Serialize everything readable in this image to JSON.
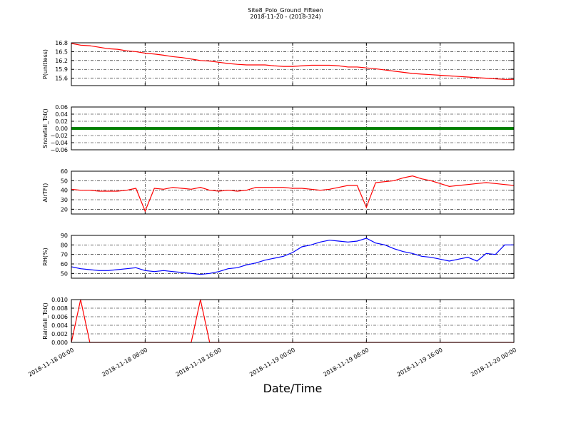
{
  "title": "Site8_Polo_Ground_Fifteen",
  "subtitle": "2018-11-20 - (2018-324)",
  "x_axis": {
    "label": "Date/Time",
    "xlim": [
      "2018-11-18 00:00",
      "2018-11-20 00:00"
    ],
    "xticks": [
      "2018-11-18 00:00",
      "2018-11-18 08:00",
      "2018-11-18 16:00",
      "2018-11-19 00:00",
      "2018-11-19 08:00",
      "2018-11-19 16:00",
      "2018-11-20 00:00"
    ],
    "x": [
      "2018-11-18 00:00",
      "2018-11-18 01:00",
      "2018-11-18 02:00",
      "2018-11-18 03:00",
      "2018-11-18 04:00",
      "2018-11-18 05:00",
      "2018-11-18 06:00",
      "2018-11-18 07:00",
      "2018-11-18 08:00",
      "2018-11-18 09:00",
      "2018-11-18 10:00",
      "2018-11-18 11:00",
      "2018-11-18 12:00",
      "2018-11-18 13:00",
      "2018-11-18 14:00",
      "2018-11-18 15:00",
      "2018-11-18 16:00",
      "2018-11-18 17:00",
      "2018-11-18 18:00",
      "2018-11-18 19:00",
      "2018-11-18 20:00",
      "2018-11-18 21:00",
      "2018-11-18 22:00",
      "2018-11-18 23:00",
      "2018-11-19 00:00",
      "2018-11-19 01:00",
      "2018-11-19 02:00",
      "2018-11-19 03:00",
      "2018-11-19 04:00",
      "2018-11-19 05:00",
      "2018-11-19 06:00",
      "2018-11-19 07:00",
      "2018-11-19 08:00",
      "2018-11-19 09:00",
      "2018-11-19 10:00",
      "2018-11-19 11:00",
      "2018-11-19 12:00",
      "2018-11-19 13:00",
      "2018-11-19 14:00",
      "2018-11-19 15:00",
      "2018-11-19 16:00",
      "2018-11-19 17:00",
      "2018-11-19 18:00",
      "2018-11-19 19:00",
      "2018-11-19 20:00",
      "2018-11-19 21:00",
      "2018-11-19 22:00",
      "2018-11-19 23:00",
      "2018-11-20 00:00"
    ]
  },
  "chart_data": [
    {
      "type": "line",
      "ylabel": "P(unitless)",
      "ylim": [
        15.35,
        16.8
      ],
      "yticks": [
        15.6,
        15.9,
        16.2,
        16.5,
        16.8
      ],
      "grid": true,
      "series": [
        {
          "color": "#ff0000",
          "values": [
            16.78,
            16.72,
            16.7,
            16.65,
            16.6,
            16.58,
            16.53,
            16.5,
            16.45,
            16.42,
            16.38,
            16.33,
            16.3,
            16.25,
            16.2,
            16.18,
            16.14,
            16.1,
            16.07,
            16.05,
            16.05,
            16.05,
            16.02,
            16.0,
            16.0,
            16.02,
            16.04,
            16.04,
            16.04,
            16.02,
            15.98,
            15.98,
            15.95,
            15.92,
            15.88,
            15.84,
            15.8,
            15.76,
            15.74,
            15.72,
            15.7,
            15.68,
            15.66,
            15.64,
            15.62,
            15.6,
            15.58,
            15.56,
            15.56
          ]
        }
      ]
    },
    {
      "type": "line",
      "ylabel": "Snowfall_Tot()",
      "ylim": [
        -0.06,
        0.06
      ],
      "grid": true,
      "marker": true,
      "yticks": [
        {
          "value": -0.06,
          "label": "−0.06"
        },
        {
          "value": -0.04,
          "label": "−0.04"
        },
        {
          "value": -0.02,
          "label": "−0.02"
        },
        {
          "value": 0,
          "label": "0.00"
        },
        {
          "value": 0.02,
          "label": "0.02"
        },
        {
          "value": 0.04,
          "label": "0.04"
        },
        {
          "value": 0.06,
          "label": "0.06"
        }
      ],
      "series": [
        {
          "color": "#008000",
          "values": [
            0,
            0,
            0,
            0,
            0,
            0,
            0,
            0,
            0,
            0,
            0,
            0,
            0,
            0,
            0,
            0,
            0,
            0,
            0,
            0,
            0,
            0,
            0,
            0,
            0,
            0,
            0,
            0,
            0,
            0,
            0,
            0,
            0,
            0,
            0,
            0,
            0,
            0,
            0,
            0,
            0,
            0,
            0,
            0,
            0,
            0,
            0,
            0,
            0
          ]
        }
      ]
    },
    {
      "type": "line",
      "ylabel": "AirTF()",
      "ylim": [
        15,
        60
      ],
      "yticks": [
        20,
        30,
        40,
        50,
        60
      ],
      "grid": true,
      "series": [
        {
          "color": "#ff0000",
          "values": [
            41,
            40,
            40,
            39,
            39,
            39,
            40,
            42,
            18,
            42,
            41,
            43,
            42,
            41,
            43,
            40,
            39,
            40,
            39,
            40,
            43,
            43,
            43,
            43,
            42,
            42,
            41,
            40,
            41,
            43,
            45,
            45,
            22,
            48,
            49,
            50,
            53,
            55,
            52,
            50,
            47,
            44,
            45,
            46,
            47,
            48,
            47,
            46,
            45
          ]
        }
      ]
    },
    {
      "type": "line",
      "ylabel": "RH(%)",
      "ylim": [
        45,
        90
      ],
      "yticks": [
        50,
        60,
        70,
        80,
        90
      ],
      "grid": true,
      "series": [
        {
          "color": "#0000ff",
          "values": [
            57,
            55,
            54,
            53,
            53,
            54,
            55,
            56,
            53,
            52,
            53,
            52,
            51,
            50,
            49,
            50,
            52,
            55,
            56,
            59,
            61,
            64,
            66,
            68,
            72,
            78,
            80,
            83,
            85,
            84,
            83,
            84,
            87,
            82,
            80,
            76,
            73,
            71,
            68,
            67,
            65,
            63,
            65,
            67,
            63,
            71,
            70,
            80,
            80
          ]
        }
      ]
    },
    {
      "type": "line",
      "ylabel": "Rainfall_Tot()",
      "ylim": [
        0,
        0.01
      ],
      "grid": true,
      "yticks": [
        {
          "value": 0,
          "label": "0.000"
        },
        {
          "value": 0.002,
          "label": "0.002"
        },
        {
          "value": 0.004,
          "label": "0.004"
        },
        {
          "value": 0.006,
          "label": "0.006"
        },
        {
          "value": 0.008,
          "label": "0.008"
        },
        {
          "value": 0.01,
          "label": "0.010"
        }
      ],
      "series": [
        {
          "color": "#ff0000",
          "values": [
            0,
            0.01,
            0,
            0,
            0,
            0,
            0,
            0,
            0,
            0,
            0,
            0,
            0,
            0,
            0.01,
            0,
            0,
            0,
            0,
            0,
            0,
            0,
            0,
            0,
            0,
            0,
            0,
            0,
            0,
            0,
            0,
            0,
            0,
            0,
            0,
            0,
            0,
            0,
            0,
            0,
            0,
            0,
            0,
            0,
            0,
            0,
            0,
            0,
            0
          ]
        }
      ]
    }
  ]
}
